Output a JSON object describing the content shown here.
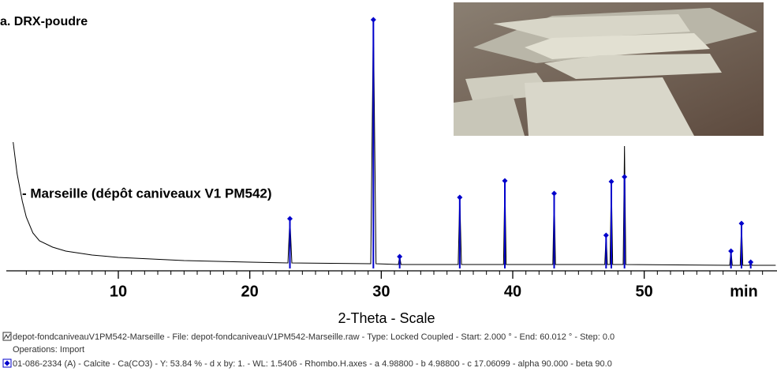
{
  "chart_data": {
    "type": "line",
    "title": "a. DRX-poudre",
    "annotation": "- Marseille (dépôt caniveaux V1 PM542)",
    "x_label": "2-Theta - Scale",
    "axis_end_label": "min",
    "xlim": [
      1.6,
      60.1
    ],
    "ylim": [
      0,
      315
    ],
    "xticks": [
      10,
      20,
      30,
      40,
      50
    ],
    "xminorticks": [
      3,
      4,
      5,
      6,
      7,
      8,
      9,
      11,
      12,
      13,
      14,
      15,
      16,
      17,
      18,
      19,
      21,
      22,
      23,
      24,
      25,
      26,
      27,
      28,
      29,
      31,
      32,
      33,
      34,
      35,
      36,
      37,
      38,
      39,
      41,
      42,
      43,
      44,
      45,
      46,
      47,
      48,
      49,
      51,
      52,
      53,
      54,
      55,
      56,
      57,
      58,
      59
    ],
    "series": [
      {
        "name": "depot-fondcaniveauV1PM542-Marseille - File: depot-fondcaniveauV1PM542-Marseille.raw - Type: Locked Coupled - Start: 2.000 ° - End: 60.012 ° - Step: 0.0",
        "note": "Operations: Import",
        "type": "line",
        "color": "#000000",
        "x": [
          2.0,
          2.3,
          2.7,
          3.0,
          3.5,
          4.0,
          5,
          6,
          8,
          10,
          15,
          20,
          22.9,
          23.05,
          23.2,
          29.2,
          29.4,
          29.6,
          31.3,
          31.4,
          31.5,
          35.85,
          35.97,
          36.1,
          39.3,
          39.4,
          39.5,
          43.05,
          43.15,
          43.25,
          47.0,
          47.1,
          47.2,
          47.4,
          47.5,
          47.6,
          48.4,
          48.5,
          48.6,
          56.5,
          56.6,
          56.7,
          57.3,
          57.4,
          57.5,
          58.0,
          58.1,
          58.2,
          60.0
        ],
        "values": [
          160,
          120,
          85,
          65,
          45,
          35,
          27,
          22,
          17,
          14,
          10,
          8,
          7,
          63,
          7,
          6,
          315,
          6,
          5,
          15,
          5,
          5,
          90,
          5,
          5,
          111,
          5,
          5,
          95,
          5,
          5,
          42,
          5,
          5,
          110,
          5,
          5,
          155,
          5,
          4,
          22,
          4,
          4,
          57,
          4,
          4,
          8,
          4,
          4
        ]
      },
      {
        "name": "01-086-2334 (A) - Calcite - Ca(CO3) - Y: 53.84 % - d x by: 1. - WL: 1.5406 - Rhombo.H.axes - a 4.98800 - b 4.98800 - c 17.06099 - alpha 90.000 - beta 90.0",
        "type": "stick",
        "color": "#0000cc",
        "x": [
          23.05,
          29.4,
          31.4,
          35.97,
          39.4,
          43.15,
          47.1,
          47.5,
          48.5,
          56.6,
          57.4,
          58.1
        ],
        "values": [
          63,
          315,
          15,
          90,
          111,
          95,
          42,
          110,
          116,
          22,
          57,
          8
        ]
      }
    ]
  }
}
